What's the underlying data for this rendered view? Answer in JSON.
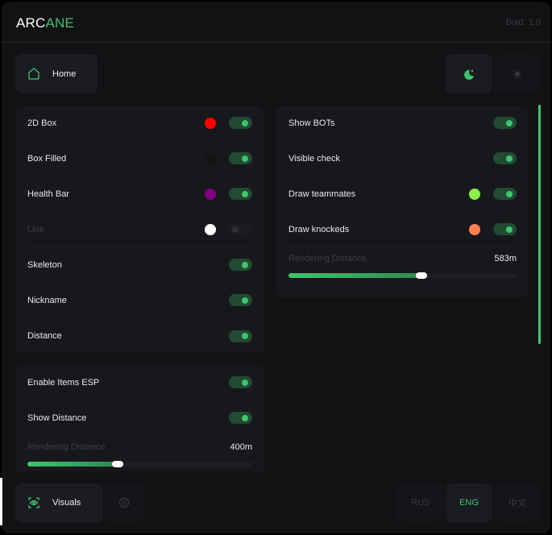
{
  "header": {
    "logo_part1": "ARC",
    "logo_part2": "ANE",
    "build": "Buid: 1.0"
  },
  "nav": {
    "home_label": "Home",
    "home_icon": "home-icon"
  },
  "theme": {
    "dark_icon": "moon-icon",
    "light_icon": "sun-icon",
    "active": "dark"
  },
  "player_esp": [
    {
      "label": "2D Box",
      "color": "#ff0000",
      "enabled": true
    },
    {
      "label": "Box Filled",
      "color": "#141414",
      "enabled": true
    },
    {
      "label": "Health Bar",
      "color": "#800080",
      "enabled": true
    },
    {
      "label": "Line",
      "color": "#ffffff",
      "enabled": false
    },
    {
      "label": "Skeleton",
      "enabled": true
    },
    {
      "label": "Nickname",
      "enabled": true
    },
    {
      "label": "Distance",
      "enabled": true
    }
  ],
  "items_esp": {
    "rows": [
      {
        "label": "Enable Items ESP",
        "enabled": true
      },
      {
        "label": "Show Distance",
        "enabled": true
      }
    ],
    "distance_label": "Rendering Distance",
    "distance_value": "400m",
    "distance_fraction": 0.4
  },
  "other_esp": {
    "rows": [
      {
        "label": "Show BOTs",
        "enabled": true
      },
      {
        "label": "Visible check",
        "enabled": true
      },
      {
        "label": "Draw teammates",
        "color": "#88f048",
        "enabled": true
      },
      {
        "label": "Draw knockeds",
        "color": "#ff7f50",
        "enabled": true
      }
    ],
    "distance_label": "Rendering Distance",
    "distance_value": "583m",
    "distance_fraction": 0.583
  },
  "footer": {
    "visuals_label": "Visuals",
    "settings_icon": "gear-icon",
    "languages": [
      "RUS",
      "ENG",
      "中文"
    ],
    "active_language": "ENG"
  },
  "accent": "#3ec46d"
}
